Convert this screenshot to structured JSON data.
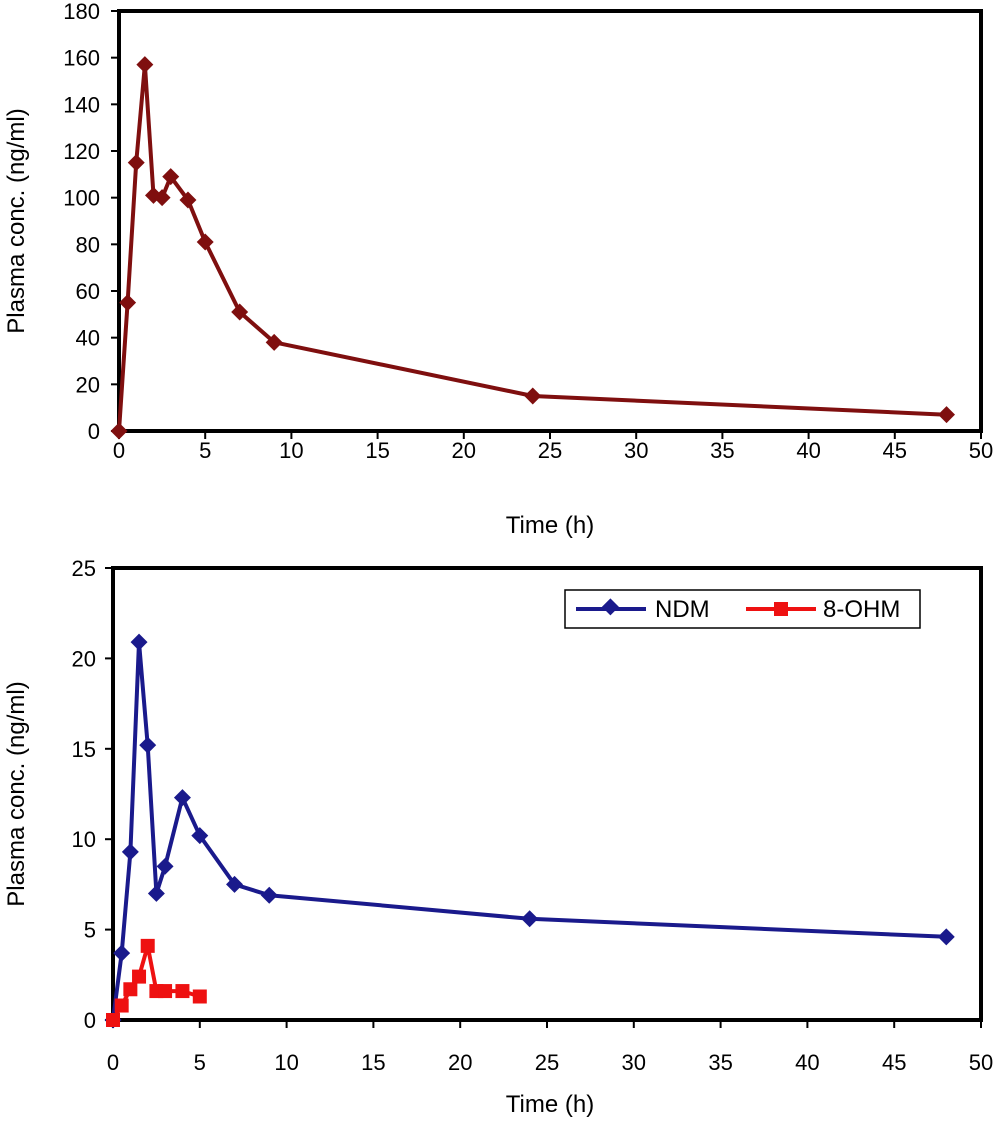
{
  "chart_data": [
    {
      "type": "line",
      "xlabel": "Time (h)",
      "ylabel": "Plasma conc. (ng/ml)",
      "xlim": [
        0,
        50
      ],
      "ylim": [
        0,
        180
      ],
      "xticks": [
        0,
        5,
        10,
        15,
        20,
        25,
        30,
        35,
        40,
        45,
        50
      ],
      "yticks": [
        0,
        20,
        40,
        60,
        80,
        100,
        120,
        140,
        160,
        180
      ],
      "grid": false,
      "series": [
        {
          "color": "#7f0f0f",
          "marker": "diamond",
          "x": [
            0,
            0.5,
            1,
            1.5,
            2,
            2.5,
            3,
            4,
            5,
            7,
            9,
            24,
            48
          ],
          "y": [
            0,
            55,
            115,
            157,
            101,
            100,
            109,
            99,
            81,
            51,
            38,
            15,
            7
          ]
        }
      ]
    },
    {
      "type": "line",
      "xlabel": "Time (h)",
      "ylabel": "Plasma conc. (ng/ml)",
      "xlim": [
        0,
        50
      ],
      "ylim": [
        0,
        25
      ],
      "xticks": [
        0,
        5,
        10,
        15,
        20,
        25,
        30,
        35,
        40,
        45,
        50
      ],
      "yticks": [
        0,
        5,
        10,
        15,
        20,
        25
      ],
      "grid": false,
      "legend": "top-right",
      "series": [
        {
          "name": "NDM",
          "color": "#1a1a8c",
          "marker": "diamond",
          "x": [
            0,
            0.5,
            1,
            1.5,
            2,
            2.5,
            3,
            4,
            5,
            7,
            9,
            24,
            48
          ],
          "y": [
            0,
            3.7,
            9.3,
            20.9,
            15.2,
            7,
            8.5,
            12.3,
            10.2,
            7.5,
            6.9,
            5.6,
            4.6
          ]
        },
        {
          "name": "8-OHM",
          "color": "#ee1111",
          "marker": "square",
          "x": [
            0,
            0.5,
            1,
            1.5,
            2,
            2.5,
            3,
            4,
            5
          ],
          "y": [
            0,
            0.8,
            1.7,
            2.4,
            4.1,
            1.6,
            1.6,
            1.6,
            1.3
          ]
        }
      ]
    }
  ]
}
